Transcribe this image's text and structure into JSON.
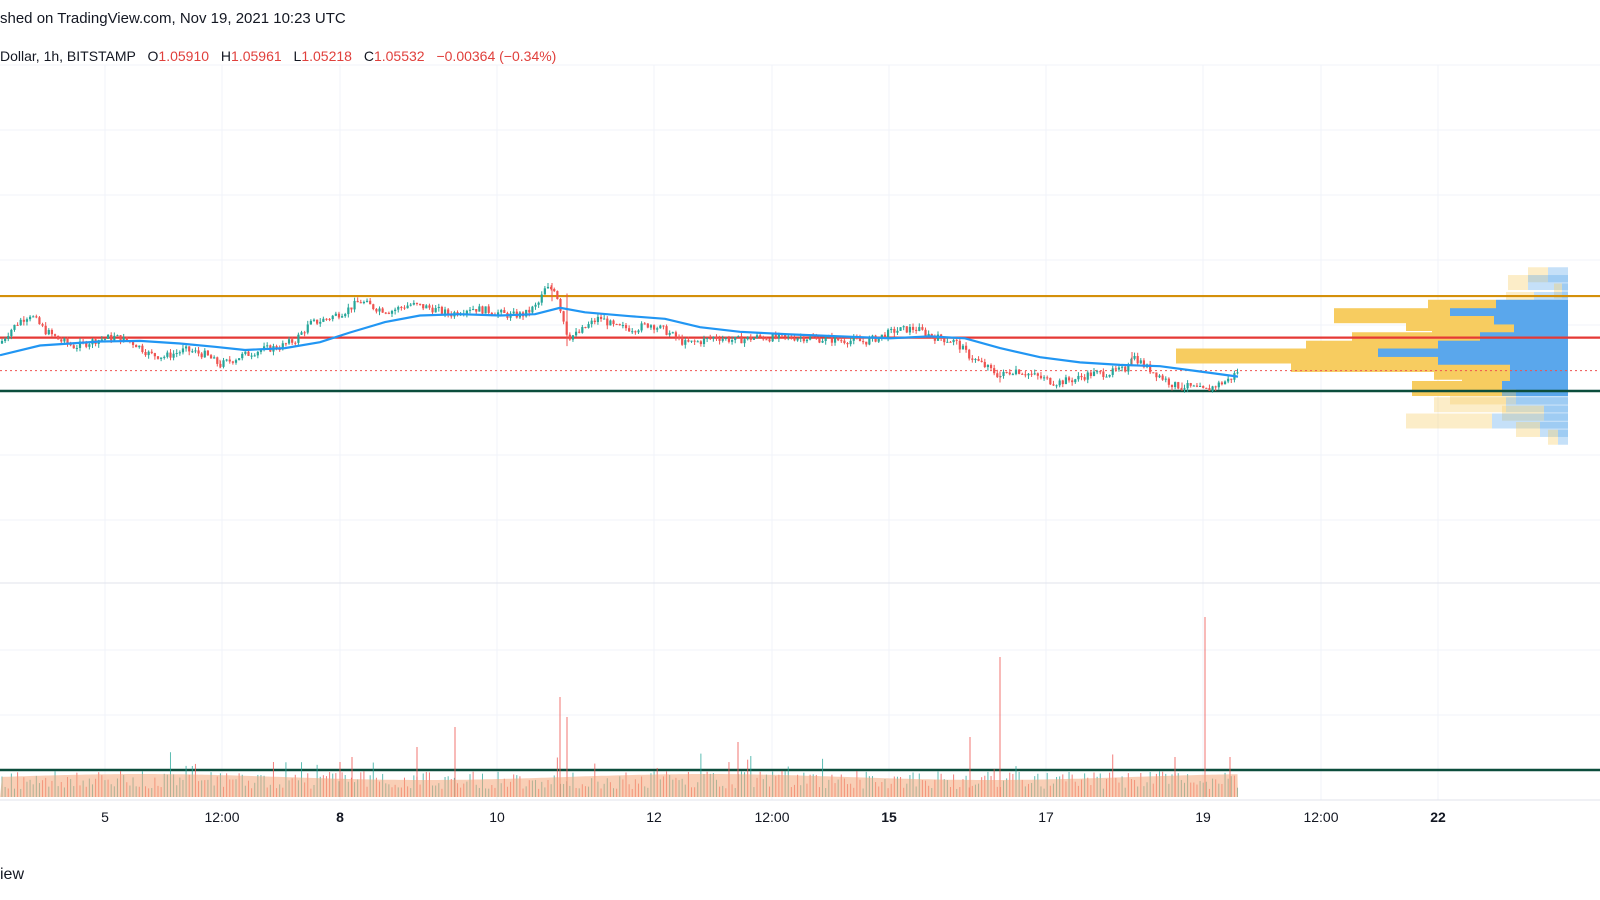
{
  "header": {
    "published_text": "shed on TradingView.com, Nov 19, 2021 10:23 UTC"
  },
  "legend": {
    "symbol": "Dollar, 1h, BITSTAMP",
    "open_label": "O",
    "open": "1.05910",
    "high_label": "H",
    "high": "1.05961",
    "low_label": "L",
    "low": "1.05218",
    "close_label": "C",
    "close": "1.05532",
    "change": "−0.00364 (−0.34%)"
  },
  "footer": {
    "watermark": "iew"
  },
  "colors": {
    "up": "#26a69a",
    "down": "#ef5350",
    "ma": "#2196f3",
    "resistance": "#d4900a",
    "support_mid": "#e53935",
    "support_low": "#0b4d3c",
    "vp_up": "#5aa7ec",
    "vp_down": "#f7cc60"
  },
  "chart_data": {
    "type": "candlestick",
    "interval": "1h",
    "price_range_visible": [
      1.0508,
      1.0712
    ],
    "x_ticks": [
      "5",
      "12:00",
      "8",
      "10",
      "12",
      "12:00",
      "15",
      "17",
      "19",
      "12:00",
      "22"
    ],
    "x_ticks_bold": [
      "8",
      "15",
      "22"
    ],
    "last_close": 1.05532,
    "horizontal_levels": [
      {
        "name": "resistance",
        "price": 1.0668
      },
      {
        "name": "mid-support",
        "price": 1.0604
      },
      {
        "name": "low-support",
        "price": 1.0522
      }
    ],
    "close_path": [
      [
        0,
        1.0595
      ],
      [
        10,
        1.0615
      ],
      [
        20,
        1.063
      ],
      [
        30,
        1.064
      ],
      [
        45,
        1.0615
      ],
      [
        60,
        1.06
      ],
      [
        75,
        1.059
      ],
      [
        95,
        1.06
      ],
      [
        115,
        1.0605
      ],
      [
        135,
        1.0595
      ],
      [
        150,
        1.0578
      ],
      [
        165,
        1.0575
      ],
      [
        185,
        1.0585
      ],
      [
        205,
        1.0578
      ],
      [
        220,
        1.0562
      ],
      [
        240,
        1.0575
      ],
      [
        260,
        1.0585
      ],
      [
        280,
        1.059
      ],
      [
        295,
        1.06
      ],
      [
        310,
        1.0625
      ],
      [
        330,
        1.0635
      ],
      [
        345,
        1.0645
      ],
      [
        360,
        1.066
      ],
      [
        375,
        1.065
      ],
      [
        390,
        1.0645
      ],
      [
        410,
        1.0655
      ],
      [
        430,
        1.065
      ],
      [
        450,
        1.064
      ],
      [
        470,
        1.065
      ],
      [
        490,
        1.0645
      ],
      [
        510,
        1.0638
      ],
      [
        525,
        1.064
      ],
      [
        538,
        1.0655
      ],
      [
        545,
        1.0678
      ],
      [
        555,
        1.068
      ],
      [
        562,
        1.064
      ],
      [
        568,
        1.0605
      ],
      [
        578,
        1.061
      ],
      [
        590,
        1.0625
      ],
      [
        600,
        1.0635
      ],
      [
        615,
        1.062
      ],
      [
        635,
        1.0618
      ],
      [
        650,
        1.0625
      ],
      [
        665,
        1.0615
      ],
      [
        685,
        1.0595
      ],
      [
        700,
        1.0598
      ],
      [
        715,
        1.0605
      ],
      [
        735,
        1.06
      ],
      [
        760,
        1.0605
      ],
      [
        780,
        1.0603
      ],
      [
        800,
        1.0605
      ],
      [
        820,
        1.0602
      ],
      [
        845,
        1.06
      ],
      [
        865,
        1.0598
      ],
      [
        880,
        1.0605
      ],
      [
        895,
        1.0615
      ],
      [
        915,
        1.0618
      ],
      [
        935,
        1.0605
      ],
      [
        955,
        1.0598
      ],
      [
        970,
        1.0575
      ],
      [
        985,
        1.056
      ],
      [
        1000,
        1.0545
      ],
      [
        1015,
        1.0555
      ],
      [
        1035,
        1.0545
      ],
      [
        1055,
        1.0535
      ],
      [
        1075,
        1.054
      ],
      [
        1090,
        1.0548
      ],
      [
        1110,
        1.055
      ],
      [
        1125,
        1.0555
      ],
      [
        1132,
        1.0578
      ],
      [
        1145,
        1.056
      ],
      [
        1160,
        1.0545
      ],
      [
        1175,
        1.053
      ],
      [
        1190,
        1.0528
      ],
      [
        1205,
        1.0522
      ],
      [
        1215,
        1.053
      ],
      [
        1230,
        1.054
      ],
      [
        1238,
        1.0553
      ]
    ],
    "moving_average": [
      [
        0,
        1.0577
      ],
      [
        40,
        1.0592
      ],
      [
        100,
        1.0598
      ],
      [
        140,
        1.0599
      ],
      [
        180,
        1.0595
      ],
      [
        215,
        1.059
      ],
      [
        245,
        1.0585
      ],
      [
        285,
        1.0588
      ],
      [
        320,
        1.0597
      ],
      [
        350,
        1.0612
      ],
      [
        385,
        1.0628
      ],
      [
        420,
        1.0638
      ],
      [
        460,
        1.064
      ],
      [
        500,
        1.0638
      ],
      [
        535,
        1.064
      ],
      [
        560,
        1.065
      ],
      [
        585,
        1.0643
      ],
      [
        630,
        1.0637
      ],
      [
        665,
        1.0633
      ],
      [
        700,
        1.062
      ],
      [
        740,
        1.0613
      ],
      [
        790,
        1.0609
      ],
      [
        840,
        1.0606
      ],
      [
        890,
        1.0603
      ],
      [
        930,
        1.0606
      ],
      [
        965,
        1.0603
      ],
      [
        1000,
        1.0588
      ],
      [
        1040,
        1.0574
      ],
      [
        1080,
        1.0566
      ],
      [
        1120,
        1.0562
      ],
      [
        1160,
        1.056
      ],
      [
        1200,
        1.0552
      ],
      [
        1238,
        1.0544
      ]
    ],
    "volume_profile": [
      {
        "price": 1.07,
        "up": 20,
        "down": 20,
        "dim": true
      },
      {
        "price": 1.0688,
        "up": 20,
        "down": 40,
        "dim": true
      },
      {
        "price": 1.0675,
        "up": 8,
        "down": 6,
        "dim": true
      },
      {
        "price": 1.0662,
        "up": 28,
        "down": 34,
        "dim": true
      },
      {
        "price": 1.065,
        "up": 68,
        "down": 72,
        "dim": false
      },
      {
        "price": 1.0637,
        "up": 116,
        "down": 118,
        "dim": false
      },
      {
        "price": 1.0625,
        "up": 88,
        "down": 74,
        "dim": false
      },
      {
        "price": 1.0612,
        "up": 82,
        "down": 54,
        "dim": false
      },
      {
        "price": 1.06,
        "up": 128,
        "down": 88,
        "dim": false
      },
      {
        "price": 1.0587,
        "up": 132,
        "down": 130,
        "dim": false
      },
      {
        "price": 1.0575,
        "up": 202,
        "down": 190,
        "dim": false
      },
      {
        "price": 1.0562,
        "up": 147,
        "down": 130,
        "dim": false
      },
      {
        "price": 1.055,
        "up": 76,
        "down": 58,
        "dim": false
      },
      {
        "price": 1.0537,
        "up": 48,
        "down": 58,
        "dim": false
      },
      {
        "price": 1.0525,
        "up": 90,
        "down": 66,
        "dim": false
      },
      {
        "price": 1.0512,
        "up": 66,
        "down": 52,
        "dim": true
      },
      {
        "price": 1.05,
        "up": 72,
        "down": 62,
        "dim": true
      },
      {
        "price": 1.0487,
        "up": 42,
        "down": 24,
        "dim": true
      },
      {
        "price": 1.0475,
        "up": 86,
        "down": 76,
        "dim": true
      },
      {
        "price": 1.0462,
        "up": 24,
        "down": 28,
        "dim": true
      },
      {
        "price": 1.045,
        "up": 10,
        "down": 10,
        "dim": true
      }
    ],
    "volume_spikes": [
      [
        560,
        100
      ],
      [
        567,
        80
      ],
      [
        455,
        70
      ],
      [
        1000,
        140
      ],
      [
        1205,
        180
      ],
      [
        970,
        60
      ],
      [
        738,
        55
      ],
      [
        417,
        50
      ],
      [
        352,
        40
      ],
      [
        340,
        35
      ],
      [
        1175,
        40
      ],
      [
        1230,
        40
      ]
    ]
  }
}
